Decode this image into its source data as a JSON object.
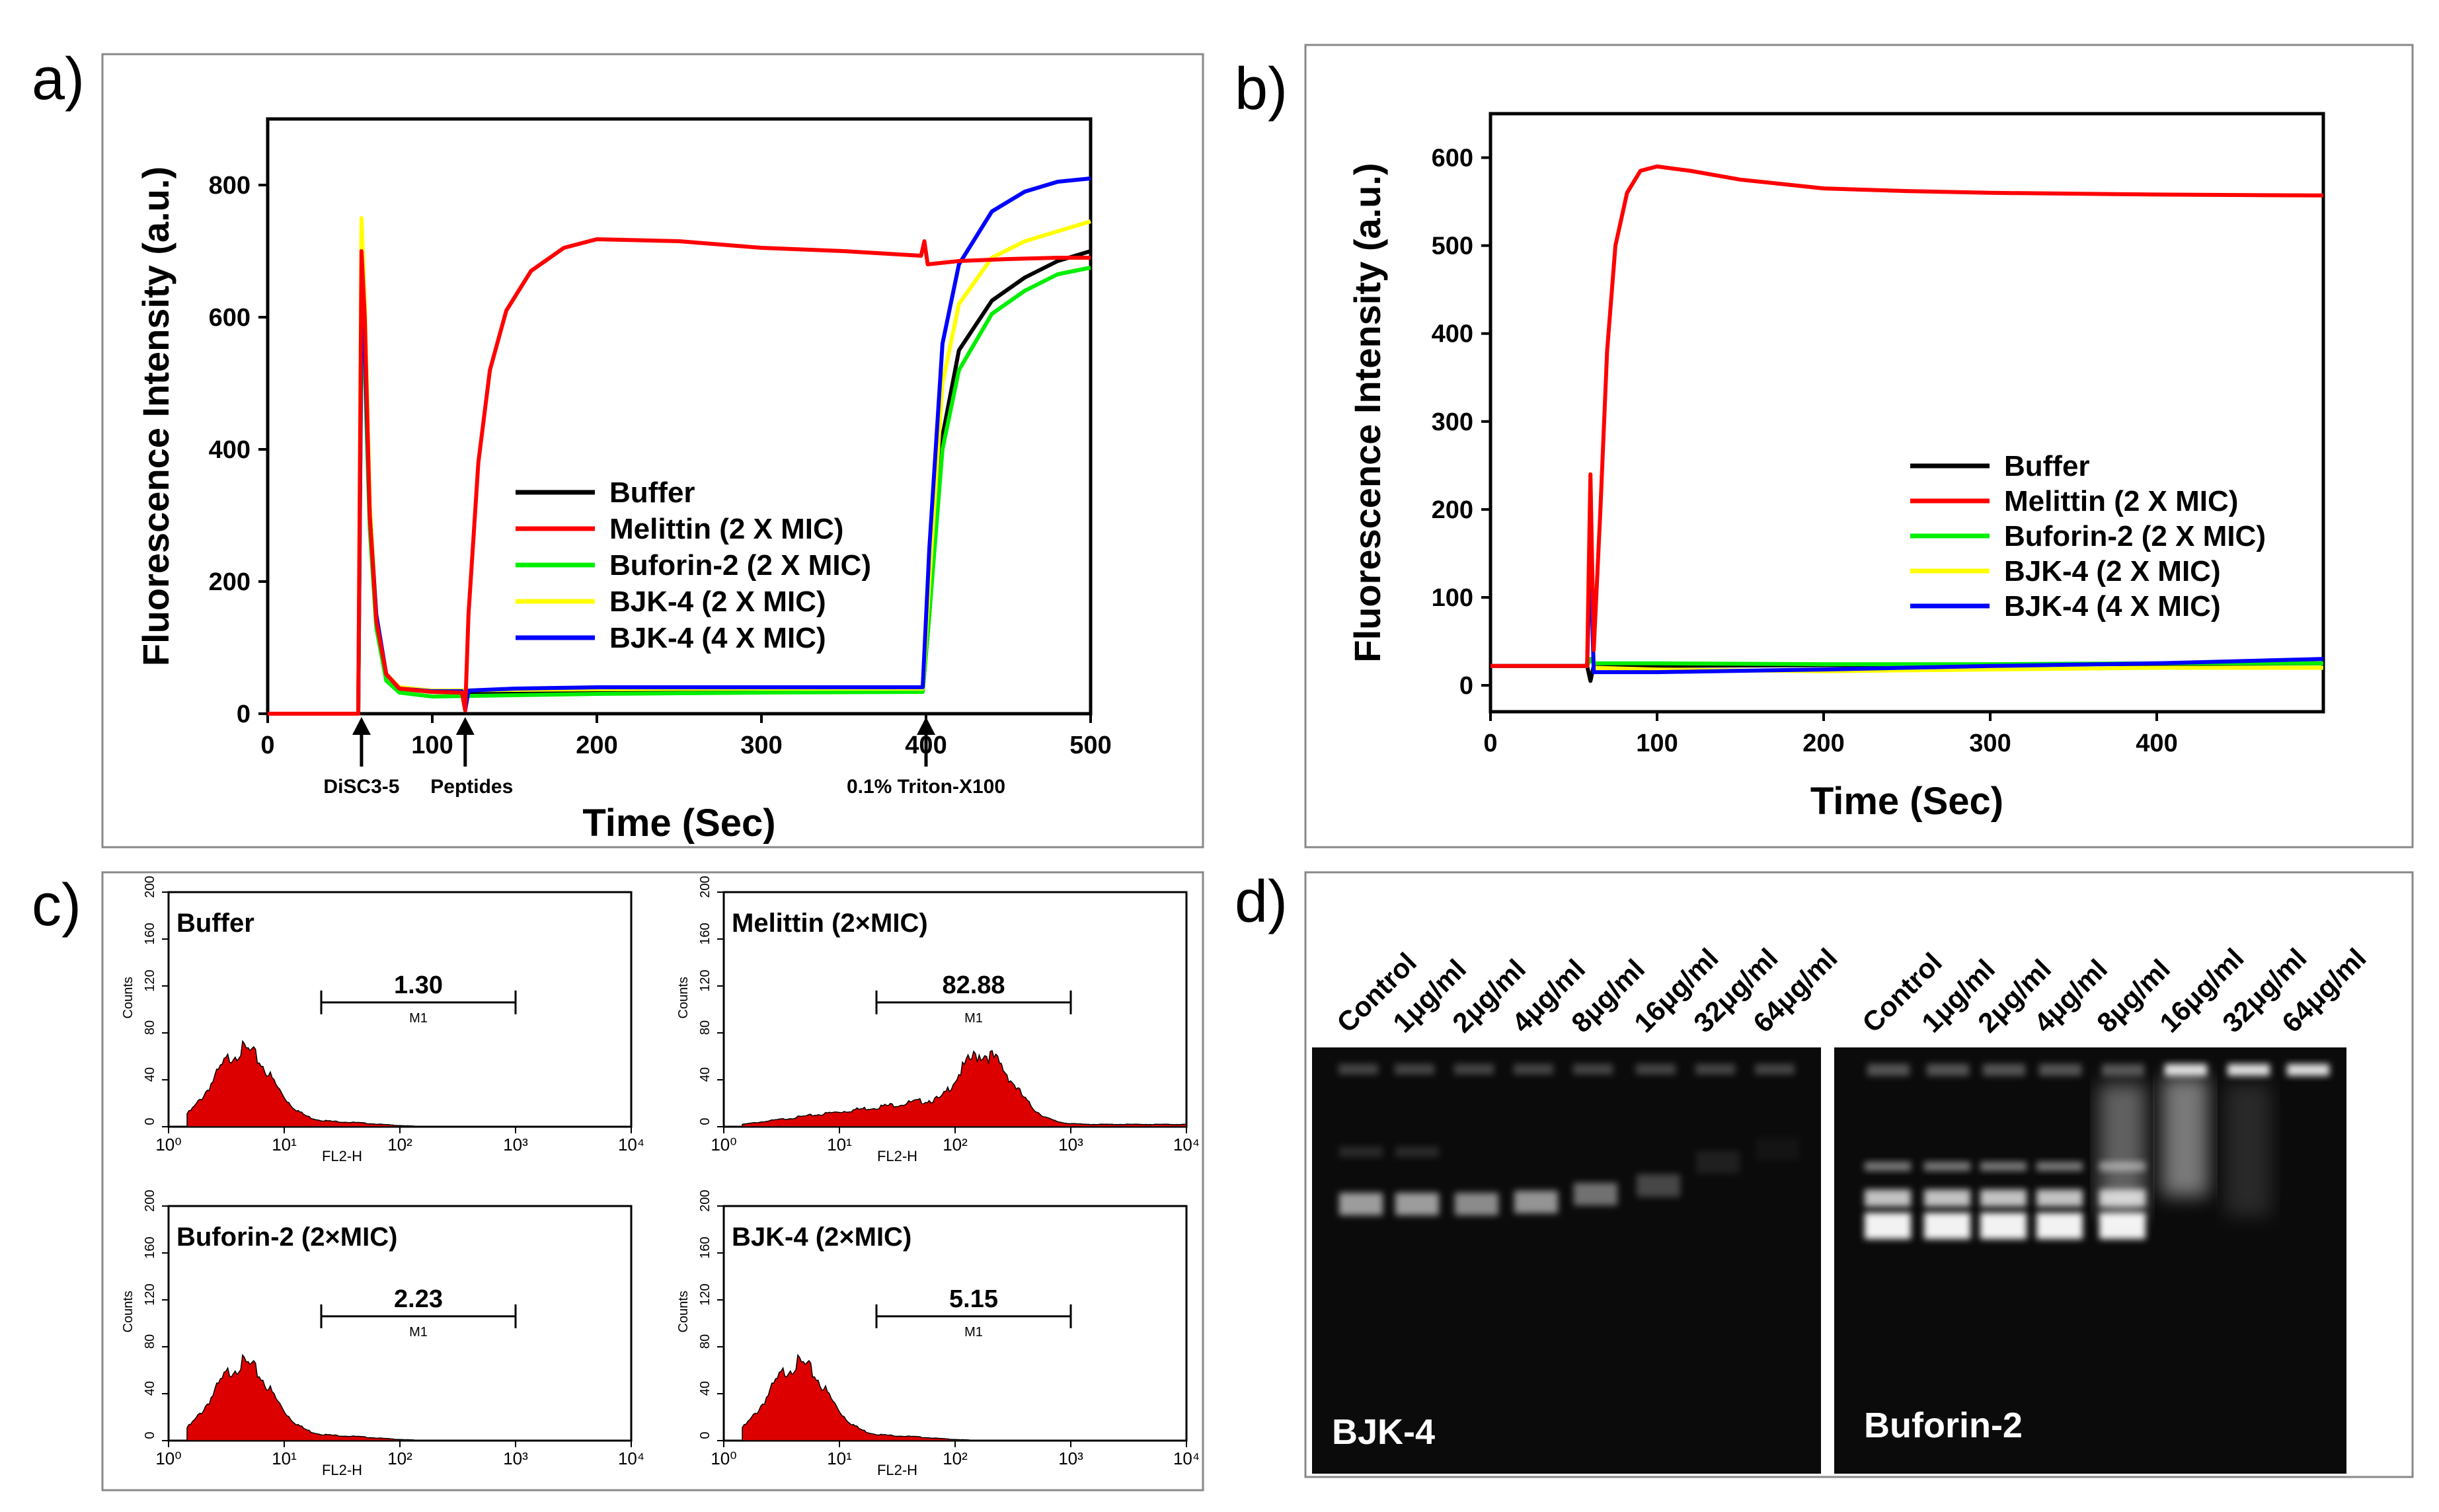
{
  "panels": {
    "a": "a)",
    "b": "b)",
    "c": "c)",
    "d": "d)"
  },
  "legend": {
    "buffer": "Buffer",
    "melittin": "Melittin (2 X MIC)",
    "buforin": "Buforin-2 (2 X MIC)",
    "bjk2": "BJK-4 (2 X MIC)",
    "bjk4": "BJK-4 (4 X MIC)"
  },
  "colors": {
    "buffer": "#000000",
    "melittin": "#ff0000",
    "buforin": "#00ee00",
    "bjk2": "#ffff00",
    "bjk4": "#0000ff",
    "histogram": "#dd0000"
  },
  "chart_data": [
    {
      "panel": "a",
      "type": "line",
      "xlabel": "Time (Sec)",
      "ylabel": "Fluorescence Intensity (a.u.)",
      "xlim": [
        0,
        500
      ],
      "ylim": [
        0,
        900
      ],
      "xticks": [
        0,
        100,
        200,
        300,
        400,
        500
      ],
      "yticks": [
        0,
        200,
        400,
        600,
        800
      ],
      "annotations": [
        {
          "x": 57,
          "label": "DiSC3-5"
        },
        {
          "x": 120,
          "label": "Peptides"
        },
        {
          "x": 400,
          "label": "0.1% Triton-X100"
        }
      ],
      "series": [
        {
          "name": "Buffer",
          "points": [
            [
              0,
              0
            ],
            [
              55,
              0
            ],
            [
              57,
              610
            ],
            [
              59,
              560
            ],
            [
              62,
              300
            ],
            [
              66,
              140
            ],
            [
              72,
              60
            ],
            [
              80,
              38
            ],
            [
              100,
              33
            ],
            [
              150,
              32
            ],
            [
              200,
              33
            ],
            [
              300,
              34
            ],
            [
              398,
              34
            ],
            [
              402,
              150
            ],
            [
              410,
              420
            ],
            [
              420,
              550
            ],
            [
              440,
              625
            ],
            [
              460,
              660
            ],
            [
              480,
              685
            ],
            [
              500,
              700
            ]
          ]
        },
        {
          "name": "Melittin (2 X MIC)",
          "points": [
            [
              0,
              0
            ],
            [
              55,
              0
            ],
            [
              57,
              700
            ],
            [
              59,
              600
            ],
            [
              62,
              300
            ],
            [
              66,
              140
            ],
            [
              72,
              60
            ],
            [
              80,
              38
            ],
            [
              100,
              33
            ],
            [
              118,
              32
            ],
            [
              120,
              5
            ],
            [
              122,
              150
            ],
            [
              128,
              380
            ],
            [
              135,
              520
            ],
            [
              145,
              610
            ],
            [
              160,
              670
            ],
            [
              180,
              705
            ],
            [
              200,
              718
            ],
            [
              250,
              715
            ],
            [
              300,
              705
            ],
            [
              350,
              700
            ],
            [
              397,
              693
            ],
            [
              399,
              715
            ],
            [
              401,
              680
            ],
            [
              420,
              685
            ],
            [
              450,
              688
            ],
            [
              480,
              690
            ],
            [
              500,
              690
            ]
          ]
        },
        {
          "name": "Buforin-2 (2 X MIC)",
          "points": [
            [
              0,
              0
            ],
            [
              55,
              0
            ],
            [
              57,
              580
            ],
            [
              59,
              520
            ],
            [
              62,
              280
            ],
            [
              66,
              130
            ],
            [
              72,
              50
            ],
            [
              80,
              32
            ],
            [
              100,
              26
            ],
            [
              150,
              28
            ],
            [
              200,
              30
            ],
            [
              300,
              32
            ],
            [
              398,
              33
            ],
            [
              402,
              150
            ],
            [
              410,
              400
            ],
            [
              420,
              520
            ],
            [
              440,
              605
            ],
            [
              460,
              640
            ],
            [
              480,
              665
            ],
            [
              500,
              675
            ]
          ]
        },
        {
          "name": "BJK-4 (2 X MIC)",
          "points": [
            [
              0,
              0
            ],
            [
              55,
              0
            ],
            [
              57,
              750
            ],
            [
              59,
              620
            ],
            [
              62,
              320
            ],
            [
              66,
              150
            ],
            [
              72,
              60
            ],
            [
              80,
              40
            ],
            [
              100,
              35
            ],
            [
              150,
              36
            ],
            [
              200,
              37
            ],
            [
              300,
              38
            ],
            [
              398,
              38
            ],
            [
              402,
              200
            ],
            [
              410,
              500
            ],
            [
              420,
              620
            ],
            [
              440,
              690
            ],
            [
              460,
              715
            ],
            [
              480,
              730
            ],
            [
              500,
              745
            ]
          ]
        },
        {
          "name": "BJK-4 (4 X MIC)",
          "points": [
            [
              0,
              0
            ],
            [
              55,
              0
            ],
            [
              57,
              600
            ],
            [
              59,
              560
            ],
            [
              62,
              300
            ],
            [
              66,
              150
            ],
            [
              72,
              60
            ],
            [
              80,
              38
            ],
            [
              100,
              34
            ],
            [
              118,
              34
            ],
            [
              120,
              5
            ],
            [
              122,
              35
            ],
            [
              150,
              38
            ],
            [
              200,
              40
            ],
            [
              300,
              40
            ],
            [
              398,
              40
            ],
            [
              402,
              250
            ],
            [
              410,
              560
            ],
            [
              420,
              680
            ],
            [
              440,
              760
            ],
            [
              460,
              790
            ],
            [
              480,
              805
            ],
            [
              500,
              810
            ]
          ]
        }
      ]
    },
    {
      "panel": "b",
      "type": "line",
      "xlabel": "Time (Sec)",
      "ylabel": "Fluorescence Intensity (a.u.)",
      "xlim": [
        0,
        500
      ],
      "ylim": [
        -30,
        650
      ],
      "xticks": [
        0,
        100,
        200,
        300,
        400
      ],
      "yticks": [
        0,
        100,
        200,
        300,
        400,
        500,
        600
      ],
      "series": [
        {
          "name": "Buffer",
          "points": [
            [
              0,
              22
            ],
            [
              58,
              22
            ],
            [
              60,
              5
            ],
            [
              62,
              22
            ],
            [
              500,
              25
            ]
          ]
        },
        {
          "name": "Melittin (2 X MIC)",
          "points": [
            [
              0,
              22
            ],
            [
              58,
              22
            ],
            [
              60,
              240
            ],
            [
              62,
              40
            ],
            [
              66,
              200
            ],
            [
              70,
              380
            ],
            [
              75,
              500
            ],
            [
              82,
              560
            ],
            [
              90,
              585
            ],
            [
              100,
              590
            ],
            [
              120,
              585
            ],
            [
              150,
              575
            ],
            [
              200,
              565
            ],
            [
              250,
              562
            ],
            [
              300,
              560
            ],
            [
              400,
              558
            ],
            [
              500,
              557
            ]
          ]
        },
        {
          "name": "Buforin-2 (2 X MIC)",
          "points": [
            [
              0,
              22
            ],
            [
              58,
              22
            ],
            [
              60,
              30
            ],
            [
              62,
              25
            ],
            [
              100,
              25
            ],
            [
              200,
              24
            ],
            [
              300,
              24
            ],
            [
              400,
              25
            ],
            [
              500,
              25
            ]
          ]
        },
        {
          "name": "BJK-4 (2 X MIC)",
          "points": [
            [
              0,
              22
            ],
            [
              58,
              22
            ],
            [
              60,
              240
            ],
            [
              62,
              20
            ],
            [
              100,
              18
            ],
            [
              200,
              16
            ],
            [
              300,
              18
            ],
            [
              400,
              20
            ],
            [
              500,
              20
            ]
          ]
        },
        {
          "name": "BJK-4 (4 X MIC)",
          "points": [
            [
              0,
              22
            ],
            [
              58,
              22
            ],
            [
              60,
              155
            ],
            [
              62,
              15
            ],
            [
              100,
              15
            ],
            [
              200,
              18
            ],
            [
              300,
              22
            ],
            [
              400,
              25
            ],
            [
              500,
              30
            ]
          ]
        }
      ]
    },
    {
      "panel": "c",
      "type": "histogram",
      "xlabel": "FL2-H",
      "ylabel": "Counts",
      "xticks": [
        "10⁰",
        "10¹",
        "10²",
        "10³",
        "10⁴"
      ],
      "yticks": [
        0,
        40,
        80,
        120,
        160,
        200
      ],
      "gate_label": "M1",
      "plots": [
        {
          "title": "Buffer",
          "value": "1.30",
          "mode": "low"
        },
        {
          "title": "Melittin  (2×MIC)",
          "value": "82.88",
          "mode": "high"
        },
        {
          "title": "Buforin-2 (2×MIC)",
          "value": "2.23",
          "mode": "low"
        },
        {
          "title": "BJK-4 (2×MIC)",
          "value": "5.15",
          "mode": "low"
        }
      ]
    }
  ],
  "gel": {
    "lane_labels": [
      "Control",
      "1μg/ml",
      "2μg/ml",
      "4μg/ml",
      "8μg/ml",
      "16μg/ml",
      "32μg/ml",
      "64μg/ml"
    ],
    "left_label": "BJK-4",
    "right_label": "Buforin-2"
  }
}
